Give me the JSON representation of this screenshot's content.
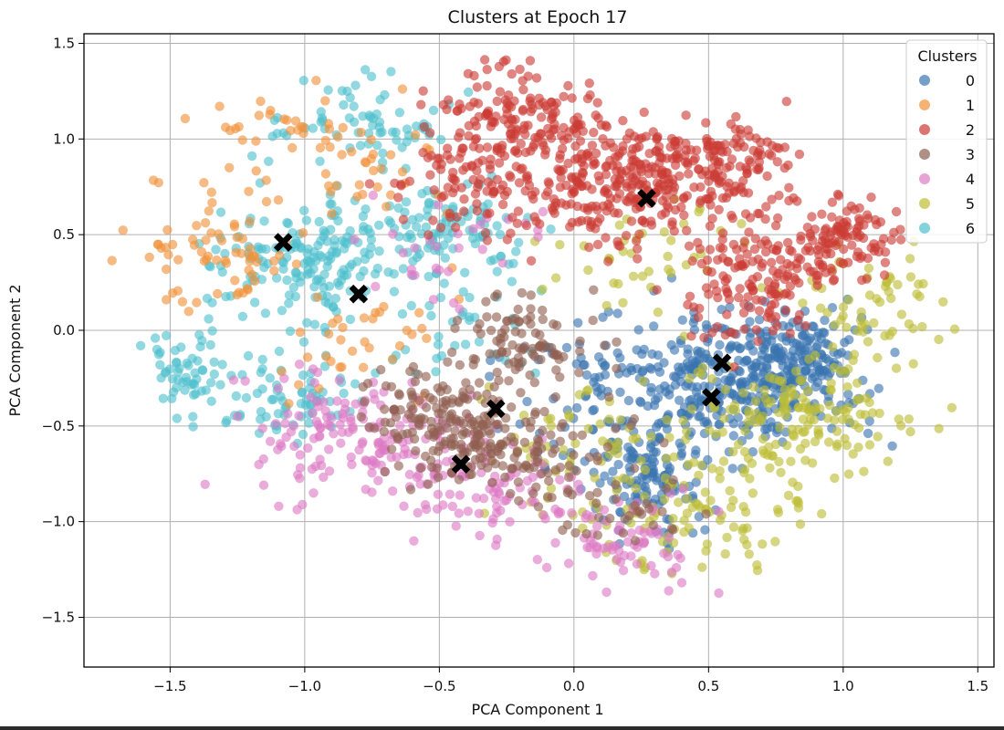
{
  "chart_data": {
    "type": "scatter",
    "title": "Clusters at Epoch 17",
    "xlabel": "PCA Component 1",
    "ylabel": "PCA Component 2",
    "xlim": [
      -1.82,
      1.56
    ],
    "ylim": [
      -1.76,
      1.55
    ],
    "xticks": [
      -1.5,
      -1.0,
      -0.5,
      0.0,
      0.5,
      1.0,
      1.5
    ],
    "xtick_labels": [
      "−1.5",
      "−1.0",
      "−0.5",
      "0.0",
      "0.5",
      "1.0",
      "1.5"
    ],
    "yticks": [
      1.5,
      1.0,
      0.5,
      0.0,
      -0.5,
      -1.0,
      -1.5
    ],
    "ytick_labels": [
      "1.5",
      "1.0",
      "0.5",
      "0.0",
      "−0.5",
      "−1.0",
      "−1.5"
    ],
    "grid": true,
    "legend": {
      "title": "Clusters",
      "position": "top-right"
    },
    "series": [
      {
        "name": "0",
        "color": "#3a75b0",
        "clusters": [
          {
            "center": [
              0.62,
              -0.28
            ],
            "spread": [
              0.22,
              0.17
            ],
            "n": 320
          },
          {
            "center": [
              0.83,
              -0.12
            ],
            "spread": [
              0.1,
              0.1
            ],
            "n": 120
          },
          {
            "center": [
              0.28,
              -0.82
            ],
            "spread": [
              0.1,
              0.14
            ],
            "n": 110
          },
          {
            "center": [
              0.12,
              -0.35
            ],
            "spread": [
              0.2,
              0.24
            ],
            "n": 110
          }
        ]
      },
      {
        "name": "1",
        "color": "#f0913a",
        "clusters": [
          {
            "center": [
              -1.3,
              0.42
            ],
            "spread": [
              0.16,
              0.14
            ],
            "n": 70
          },
          {
            "center": [
              -1.08,
              0.95
            ],
            "spread": [
              0.14,
              0.15
            ],
            "n": 40
          },
          {
            "center": [
              -0.8,
              -0.05
            ],
            "spread": [
              0.22,
              0.18
            ],
            "n": 35
          },
          {
            "center": [
              -0.65,
              0.85
            ],
            "spread": [
              0.16,
              0.16
            ],
            "n": 25
          }
        ]
      },
      {
        "name": "2",
        "color": "#cc3b36",
        "clusters": [
          {
            "center": [
              -0.2,
              1.05
            ],
            "spread": [
              0.17,
              0.14
            ],
            "n": 180
          },
          {
            "center": [
              0.15,
              0.75
            ],
            "spread": [
              0.18,
              0.15
            ],
            "n": 240
          },
          {
            "center": [
              0.5,
              0.88
            ],
            "spread": [
              0.15,
              0.13
            ],
            "n": 150
          },
          {
            "center": [
              0.75,
              0.38
            ],
            "spread": [
              0.14,
              0.12
            ],
            "n": 110
          },
          {
            "center": [
              1.02,
              0.48
            ],
            "spread": [
              0.1,
              0.1
            ],
            "n": 90
          },
          {
            "center": [
              -0.35,
              0.75
            ],
            "spread": [
              0.16,
              0.13
            ],
            "n": 80
          },
          {
            "center": [
              0.62,
              0.12
            ],
            "spread": [
              0.12,
              0.12
            ],
            "n": 60
          }
        ]
      },
      {
        "name": "3",
        "color": "#8f5f51",
        "clusters": [
          {
            "center": [
              -0.42,
              -0.5
            ],
            "spread": [
              0.16,
              0.14
            ],
            "n": 200
          },
          {
            "center": [
              -0.18,
              -0.05
            ],
            "spread": [
              0.13,
              0.13
            ],
            "n": 90
          },
          {
            "center": [
              -0.1,
              -0.65
            ],
            "spread": [
              0.17,
              0.13
            ],
            "n": 70
          },
          {
            "center": [
              0.15,
              -0.9
            ],
            "spread": [
              0.14,
              0.12
            ],
            "n": 30
          }
        ]
      },
      {
        "name": "4",
        "color": "#dd7ac5",
        "clusters": [
          {
            "center": [
              -0.85,
              -0.55
            ],
            "spread": [
              0.2,
              0.15
            ],
            "n": 150
          },
          {
            "center": [
              -0.3,
              -0.85
            ],
            "spread": [
              0.18,
              0.15
            ],
            "n": 100
          },
          {
            "center": [
              0.2,
              -1.1
            ],
            "spread": [
              0.13,
              0.12
            ],
            "n": 70
          },
          {
            "center": [
              -0.45,
              0.45
            ],
            "spread": [
              0.18,
              0.15
            ],
            "n": 30
          }
        ]
      },
      {
        "name": "5",
        "color": "#bdbd35",
        "clusters": [
          {
            "center": [
              0.85,
              -0.45
            ],
            "spread": [
              0.22,
              0.17
            ],
            "n": 150
          },
          {
            "center": [
              0.5,
              -0.95
            ],
            "spread": [
              0.18,
              0.22
            ],
            "n": 90
          },
          {
            "center": [
              1.1,
              0.1
            ],
            "spread": [
              0.16,
              0.14
            ],
            "n": 60
          },
          {
            "center": [
              0.1,
              -0.6
            ],
            "spread": [
              0.24,
              0.2
            ],
            "n": 80
          },
          {
            "center": [
              0.3,
              0.4
            ],
            "spread": [
              0.22,
              0.14
            ],
            "n": 40
          }
        ]
      },
      {
        "name": "6",
        "color": "#4fc0cd",
        "clusters": [
          {
            "center": [
              -0.95,
              0.38
            ],
            "spread": [
              0.17,
              0.15
            ],
            "n": 180
          },
          {
            "center": [
              -1.45,
              -0.2
            ],
            "spread": [
              0.07,
              0.1
            ],
            "n": 50
          },
          {
            "center": [
              -1.12,
              -0.35
            ],
            "spread": [
              0.17,
              0.13
            ],
            "n": 80
          },
          {
            "center": [
              -0.78,
              1.05
            ],
            "spread": [
              0.16,
              0.12
            ],
            "n": 70
          },
          {
            "center": [
              -0.45,
              0.52
            ],
            "spread": [
              0.14,
              0.13
            ],
            "n": 90
          },
          {
            "center": [
              -0.45,
              0.05
            ],
            "spread": [
              0.16,
              0.14
            ],
            "n": 40
          }
        ]
      }
    ],
    "centroids": {
      "color": "#000000",
      "points": [
        [
          -1.08,
          0.46
        ],
        [
          -0.8,
          0.19
        ],
        [
          0.27,
          0.69
        ],
        [
          -0.29,
          -0.41
        ],
        [
          -0.42,
          -0.7
        ],
        [
          0.55,
          -0.17
        ],
        [
          0.51,
          -0.35
        ]
      ]
    }
  }
}
